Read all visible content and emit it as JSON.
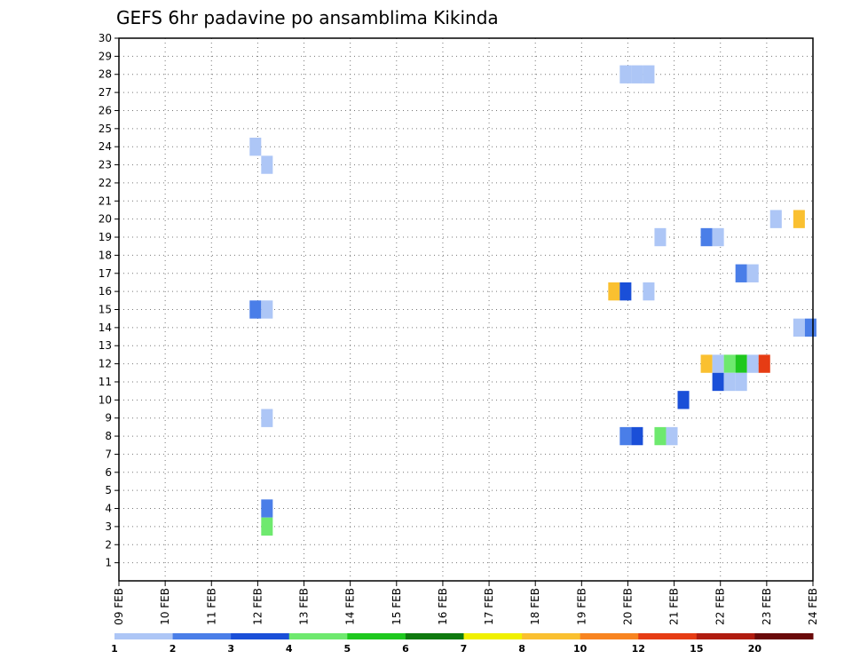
{
  "chart_data": {
    "type": "heatmap",
    "title": "GEFS 6hr padavine po ansamblima Kikinda",
    "xlabel": "",
    "ylabel": "",
    "x_ticks": [
      "09 FEB",
      "10 FEB",
      "11 FEB",
      "12 FEB",
      "13 FEB",
      "14 FEB",
      "15 FEB",
      "16 FEB",
      "17 FEB",
      "18 FEB",
      "19 FEB",
      "20 FEB",
      "21 FEB",
      "22 FEB",
      "23 FEB",
      "24 FEB"
    ],
    "xlim_days": [
      9,
      24
    ],
    "y_ticks": [
      1,
      2,
      3,
      4,
      5,
      6,
      7,
      8,
      9,
      10,
      11,
      12,
      13,
      14,
      15,
      16,
      17,
      18,
      19,
      20,
      21,
      22,
      23,
      24,
      25,
      26,
      27,
      28,
      29,
      30
    ],
    "ylim": [
      0,
      30
    ],
    "grid": true,
    "legend_position": "bottom",
    "legend": {
      "labels": [
        "1",
        "2",
        "3",
        "4",
        "5",
        "6",
        "7",
        "8",
        "10",
        "12",
        "15",
        "20"
      ],
      "colors": [
        "#adc6f6",
        "#4a7ee8",
        "#1a4fd8",
        "#6ee96e",
        "#1ec81e",
        "#0f7a0f",
        "#f0f000",
        "#fac030",
        "#f88420",
        "#e63c14",
        "#b01c10",
        "#6a0a0a"
      ]
    },
    "points": [
      {
        "x": 11.95,
        "y": 24,
        "v": 1
      },
      {
        "x": 12.2,
        "y": 23,
        "v": 1
      },
      {
        "x": 11.95,
        "y": 15,
        "v": 2
      },
      {
        "x": 12.2,
        "y": 15,
        "v": 1
      },
      {
        "x": 12.2,
        "y": 9,
        "v": 1
      },
      {
        "x": 12.2,
        "y": 4,
        "v": 2
      },
      {
        "x": 12.2,
        "y": 3,
        "v": 4
      },
      {
        "x": 19.95,
        "y": 28,
        "v": 1
      },
      {
        "x": 20.2,
        "y": 28,
        "v": 1
      },
      {
        "x": 20.45,
        "y": 28,
        "v": 1
      },
      {
        "x": 19.7,
        "y": 16,
        "v": 8
      },
      {
        "x": 19.95,
        "y": 16,
        "v": 3
      },
      {
        "x": 20.45,
        "y": 16,
        "v": 1
      },
      {
        "x": 19.95,
        "y": 8,
        "v": 2
      },
      {
        "x": 20.2,
        "y": 8,
        "v": 3
      },
      {
        "x": 20.7,
        "y": 8,
        "v": 4
      },
      {
        "x": 20.95,
        "y": 8,
        "v": 1
      },
      {
        "x": 20.7,
        "y": 19,
        "v": 1
      },
      {
        "x": 21.2,
        "y": 10,
        "v": 3
      },
      {
        "x": 21.7,
        "y": 19,
        "v": 2
      },
      {
        "x": 21.95,
        "y": 19,
        "v": 1
      },
      {
        "x": 21.7,
        "y": 12,
        "v": 8
      },
      {
        "x": 21.95,
        "y": 12,
        "v": 1
      },
      {
        "x": 22.2,
        "y": 12,
        "v": 4
      },
      {
        "x": 22.45,
        "y": 12,
        "v": 5
      },
      {
        "x": 22.7,
        "y": 12,
        "v": 1
      },
      {
        "x": 22.95,
        "y": 12,
        "v": 12
      },
      {
        "x": 21.95,
        "y": 11,
        "v": 3
      },
      {
        "x": 22.2,
        "y": 11,
        "v": 1
      },
      {
        "x": 22.45,
        "y": 11,
        "v": 1
      },
      {
        "x": 22.45,
        "y": 17,
        "v": 2
      },
      {
        "x": 22.7,
        "y": 17,
        "v": 1
      },
      {
        "x": 23.2,
        "y": 20,
        "v": 1
      },
      {
        "x": 23.7,
        "y": 20,
        "v": 8
      },
      {
        "x": 23.7,
        "y": 14,
        "v": 1
      },
      {
        "x": 23.95,
        "y": 14,
        "v": 2
      }
    ]
  }
}
